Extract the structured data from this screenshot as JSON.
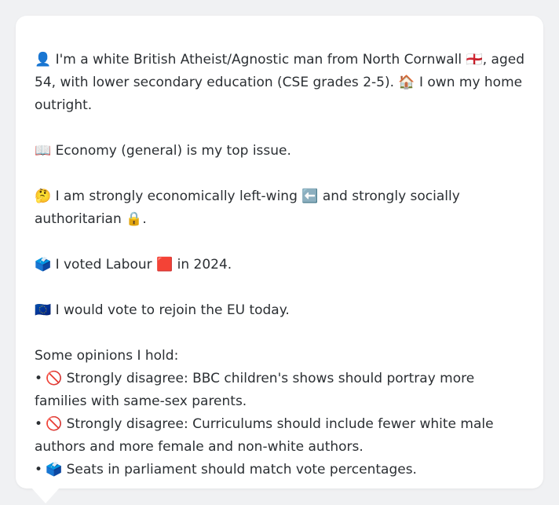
{
  "profile": {
    "line1_icon": "👤",
    "line1_text": " I'm a white British Atheist/Agnostic man from North Cornwall ",
    "line1_flag": "🏴󠁧󠁢󠁥󠁮󠁧󠁿",
    "line1_text2": ", aged 54, with lower secondary education (CSE grades 2-5). ",
    "line1_home_icon": "🏠",
    "line1_text3": " I own my home outright."
  },
  "issue": {
    "icon": "📖",
    "text": " Economy (general) is my top issue."
  },
  "ideology": {
    "icon": "🤔",
    "text": " I am strongly economically left-wing ",
    "left_icon": "⬅️",
    "text2": " and strongly socially authoritarian ",
    "lock_icon": "🔒",
    "text3": "."
  },
  "vote": {
    "icon": "🗳️",
    "text": " I voted Labour ",
    "party_icon": "🟥",
    "text2": " in 2024."
  },
  "eu": {
    "icon": "🇪🇺",
    "text": " I would vote to rejoin the EU today."
  },
  "opinions": {
    "heading": "Some opinions I hold:",
    "items": [
      {
        "bullet": "•",
        "icon": "🚫",
        "text": " Strongly disagree: BBC children's shows should portray more families with same-sex parents."
      },
      {
        "bullet": "•",
        "icon": "🚫",
        "text": " Strongly disagree: Curriculums should include fewer white male authors and more female and non-white authors."
      },
      {
        "bullet": "•",
        "icon": "🗳️",
        "text": " Seats in parliament should match vote percentages."
      }
    ]
  }
}
